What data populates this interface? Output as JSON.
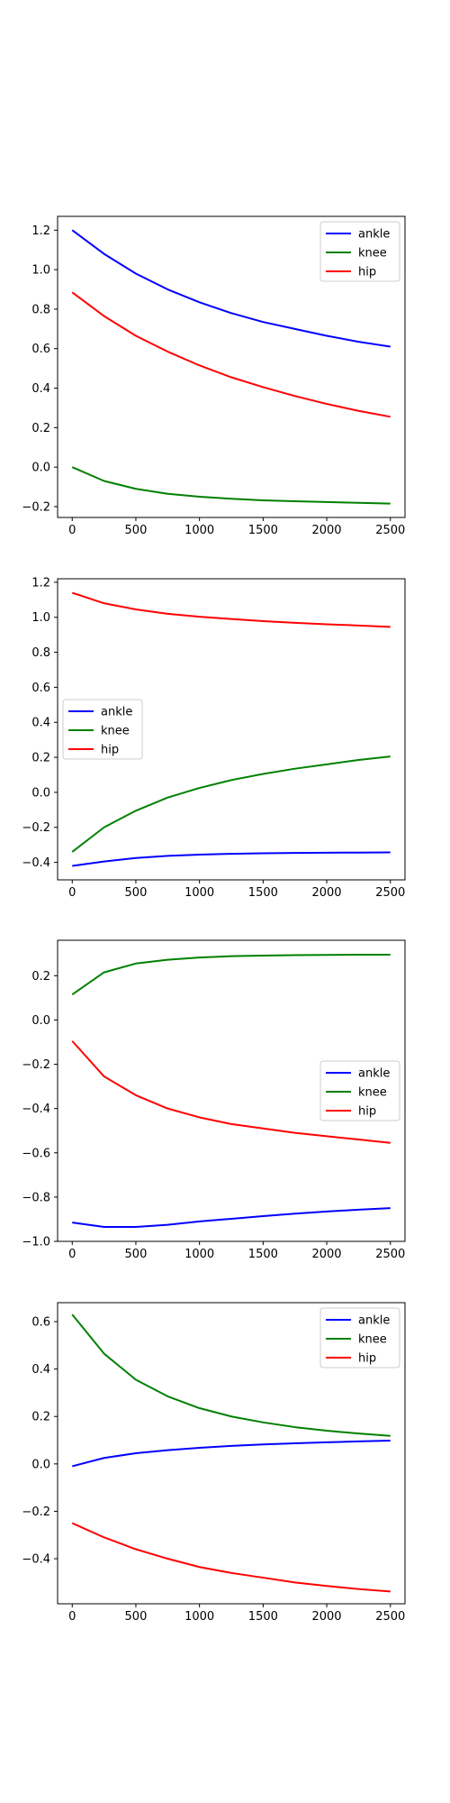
{
  "colors": {
    "ankle": "#0000ff",
    "knee": "#008000",
    "hip": "#ff0000",
    "axes": "#000000",
    "legend_border": "#cccccc",
    "background": "#ffffff"
  },
  "chart_data": [
    {
      "type": "line",
      "title": "",
      "xlabel": "",
      "ylabel": "",
      "xlim": [
        -115,
        2615
      ],
      "ylim": [
        -0.255,
        1.27
      ],
      "xticks": [
        0,
        500,
        1000,
        1500,
        2000,
        2500
      ],
      "xtick_labels": [
        "0",
        "500",
        "1000",
        "1500",
        "2000",
        "2500"
      ],
      "yticks": [
        -0.2,
        0.0,
        0.2,
        0.4,
        0.6,
        0.8,
        1.0,
        1.2
      ],
      "ytick_labels": [
        "−0.2",
        "0.0",
        "0.2",
        "0.4",
        "0.6",
        "0.8",
        "1.0",
        "1.2"
      ],
      "legend": "upper right",
      "grid": false,
      "x": [
        0,
        250,
        500,
        750,
        1000,
        1250,
        1500,
        1750,
        2000,
        2250,
        2500
      ],
      "series": [
        {
          "name": "ankle",
          "color": "#0000ff",
          "values": [
            1.2,
            1.08,
            0.98,
            0.9,
            0.835,
            0.78,
            0.735,
            0.7,
            0.665,
            0.635,
            0.61
          ]
        },
        {
          "name": "knee",
          "color": "#008000",
          "values": [
            0.0,
            -0.07,
            -0.11,
            -0.135,
            -0.15,
            -0.16,
            -0.168,
            -0.173,
            -0.177,
            -0.181,
            -0.185
          ]
        },
        {
          "name": "hip",
          "color": "#ff0000",
          "values": [
            0.885,
            0.765,
            0.665,
            0.585,
            0.515,
            0.455,
            0.405,
            0.36,
            0.32,
            0.285,
            0.255
          ]
        }
      ]
    },
    {
      "type": "line",
      "title": "",
      "xlabel": "",
      "ylabel": "",
      "xlim": [
        -115,
        2615
      ],
      "ylim": [
        -0.5,
        1.22
      ],
      "xticks": [
        0,
        500,
        1000,
        1500,
        2000,
        2500
      ],
      "xtick_labels": [
        "0",
        "500",
        "1000",
        "1500",
        "2000",
        "2500"
      ],
      "yticks": [
        -0.4,
        -0.2,
        0.0,
        0.2,
        0.4,
        0.6,
        0.8,
        1.0,
        1.2
      ],
      "ytick_labels": [
        "−0.4",
        "−0.2",
        "0.0",
        "0.2",
        "0.4",
        "0.6",
        "0.8",
        "1.0",
        "1.2"
      ],
      "legend": "center left",
      "grid": false,
      "x": [
        0,
        250,
        500,
        750,
        1000,
        1250,
        1500,
        1750,
        2000,
        2250,
        2500
      ],
      "series": [
        {
          "name": "ankle",
          "color": "#0000ff",
          "values": [
            -0.42,
            -0.395,
            -0.375,
            -0.363,
            -0.356,
            -0.351,
            -0.348,
            -0.346,
            -0.345,
            -0.344,
            -0.343
          ]
        },
        {
          "name": "knee",
          "color": "#008000",
          "values": [
            -0.34,
            -0.2,
            -0.105,
            -0.03,
            0.025,
            0.07,
            0.105,
            0.135,
            0.16,
            0.185,
            0.205
          ]
        },
        {
          "name": "hip",
          "color": "#ff0000",
          "values": [
            1.14,
            1.08,
            1.045,
            1.02,
            1.003,
            0.99,
            0.978,
            0.968,
            0.96,
            0.953,
            0.945
          ]
        }
      ]
    },
    {
      "type": "line",
      "title": "",
      "xlabel": "",
      "ylabel": "",
      "xlim": [
        -115,
        2615
      ],
      "ylim": [
        -1.0,
        0.36
      ],
      "xticks": [
        0,
        500,
        1000,
        1500,
        2000,
        2500
      ],
      "xtick_labels": [
        "0",
        "500",
        "1000",
        "1500",
        "2000",
        "2500"
      ],
      "yticks": [
        -1.0,
        -0.8,
        -0.6,
        -0.4,
        -0.2,
        0.0,
        0.2
      ],
      "ytick_labels": [
        "−1.0",
        "−0.8",
        "−0.6",
        "−0.4",
        "−0.2",
        "0.0",
        "0.2"
      ],
      "legend": "center right",
      "grid": false,
      "x": [
        0,
        250,
        500,
        750,
        1000,
        1250,
        1500,
        1750,
        2000,
        2250,
        2500
      ],
      "series": [
        {
          "name": "ankle",
          "color": "#0000ff",
          "values": [
            -0.915,
            -0.935,
            -0.935,
            -0.925,
            -0.91,
            -0.898,
            -0.886,
            -0.875,
            -0.865,
            -0.857,
            -0.85
          ]
        },
        {
          "name": "knee",
          "color": "#008000",
          "values": [
            0.115,
            0.215,
            0.255,
            0.272,
            0.282,
            0.288,
            0.291,
            0.293,
            0.294,
            0.295,
            0.295
          ]
        },
        {
          "name": "hip",
          "color": "#ff0000",
          "values": [
            -0.095,
            -0.255,
            -0.34,
            -0.4,
            -0.44,
            -0.47,
            -0.49,
            -0.51,
            -0.525,
            -0.54,
            -0.555
          ]
        }
      ]
    },
    {
      "type": "line",
      "title": "",
      "xlabel": "",
      "ylabel": "",
      "xlim": [
        -115,
        2615
      ],
      "ylim": [
        -0.59,
        0.68
      ],
      "xticks": [
        0,
        500,
        1000,
        1500,
        2000,
        2500
      ],
      "xtick_labels": [
        "0",
        "500",
        "1000",
        "1500",
        "2000",
        "2500"
      ],
      "yticks": [
        -0.4,
        -0.2,
        0.0,
        0.2,
        0.4,
        0.6
      ],
      "ytick_labels": [
        "−0.4",
        "−0.2",
        "0.0",
        "0.2",
        "0.4",
        "0.6"
      ],
      "legend": "upper right",
      "grid": false,
      "x": [
        0,
        250,
        500,
        750,
        1000,
        1250,
        1500,
        1750,
        2000,
        2250,
        2500
      ],
      "series": [
        {
          "name": "ankle",
          "color": "#0000ff",
          "values": [
            -0.01,
            0.025,
            0.045,
            0.058,
            0.068,
            0.076,
            0.082,
            0.087,
            0.091,
            0.095,
            0.098
          ]
        },
        {
          "name": "knee",
          "color": "#008000",
          "values": [
            0.63,
            0.465,
            0.355,
            0.285,
            0.235,
            0.2,
            0.175,
            0.155,
            0.14,
            0.128,
            0.118
          ]
        },
        {
          "name": "hip",
          "color": "#ff0000",
          "values": [
            -0.25,
            -0.31,
            -0.36,
            -0.4,
            -0.435,
            -0.46,
            -0.48,
            -0.5,
            -0.515,
            -0.528,
            -0.538
          ]
        }
      ]
    }
  ]
}
